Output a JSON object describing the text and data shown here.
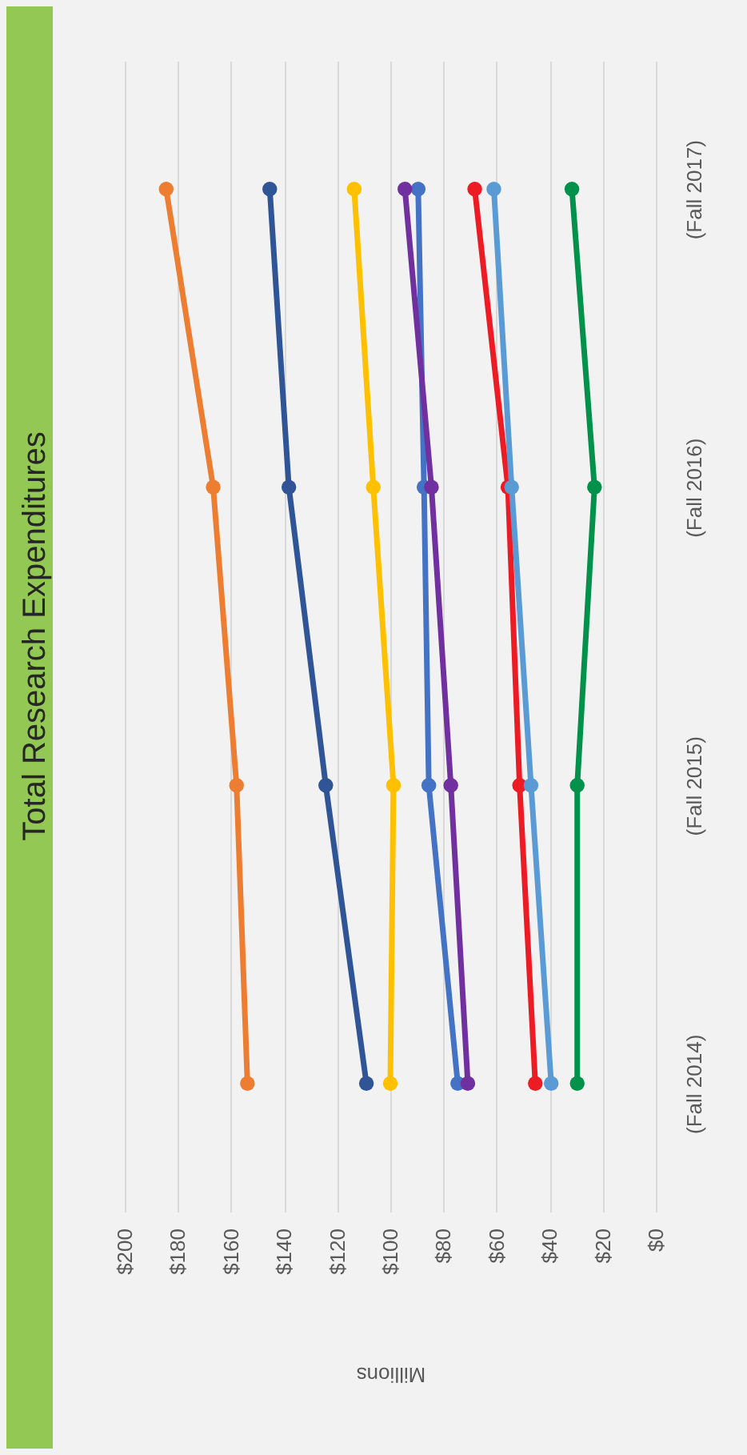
{
  "chart_data": {
    "type": "line",
    "title": "Total Research Expenditures",
    "xlabel": "Millions",
    "orientation": "horizontal",
    "categories": [
      "(Fall 2017)",
      "(Fall 2016)",
      "(Fall 2015)",
      "(Fall 2014)"
    ],
    "series": [
      {
        "color": "#ed7d31",
        "values": [
          184.4,
          166.7,
          157.9,
          153.8
        ]
      },
      {
        "color": "#2f5597",
        "values": [
          145.4,
          138.2,
          124.3,
          109
        ]
      },
      {
        "color": "#ffc000",
        "values": [
          113.6,
          106.4,
          98.8,
          100
        ]
      },
      {
        "color": "#4472c4",
        "values": [
          89.5,
          87.3,
          85.5,
          74.6
        ]
      },
      {
        "color": "#7030a0",
        "values": [
          94.5,
          84.5,
          77.2,
          70.8
        ]
      },
      {
        "color": "#ed1c24",
        "values": [
          68.2,
          55.7,
          51.3,
          45.4
        ]
      },
      {
        "color": "#5b9bd5",
        "values": [
          61,
          54.3,
          47,
          39.4
        ]
      },
      {
        "color": "#00914a",
        "values": [
          31.6,
          23.1,
          29.6,
          29.6
        ]
      }
    ],
    "xlim": [
      200,
      0
    ],
    "xticks": [
      {
        "value": 200,
        "label": "$200"
      },
      {
        "value": 180,
        "label": "$180"
      },
      {
        "value": 160,
        "label": "$160"
      },
      {
        "value": 140,
        "label": "$140"
      },
      {
        "value": 120,
        "label": "$120"
      },
      {
        "value": 100,
        "label": "$100"
      },
      {
        "value": 80,
        "label": "$80"
      },
      {
        "value": 60,
        "label": "$60"
      },
      {
        "value": 40,
        "label": "$40"
      },
      {
        "value": 20,
        "label": "$20"
      },
      {
        "value": 0,
        "label": "$0"
      }
    ],
    "grid": "x",
    "legend": false,
    "marker": "circle",
    "line_style": "solid"
  }
}
